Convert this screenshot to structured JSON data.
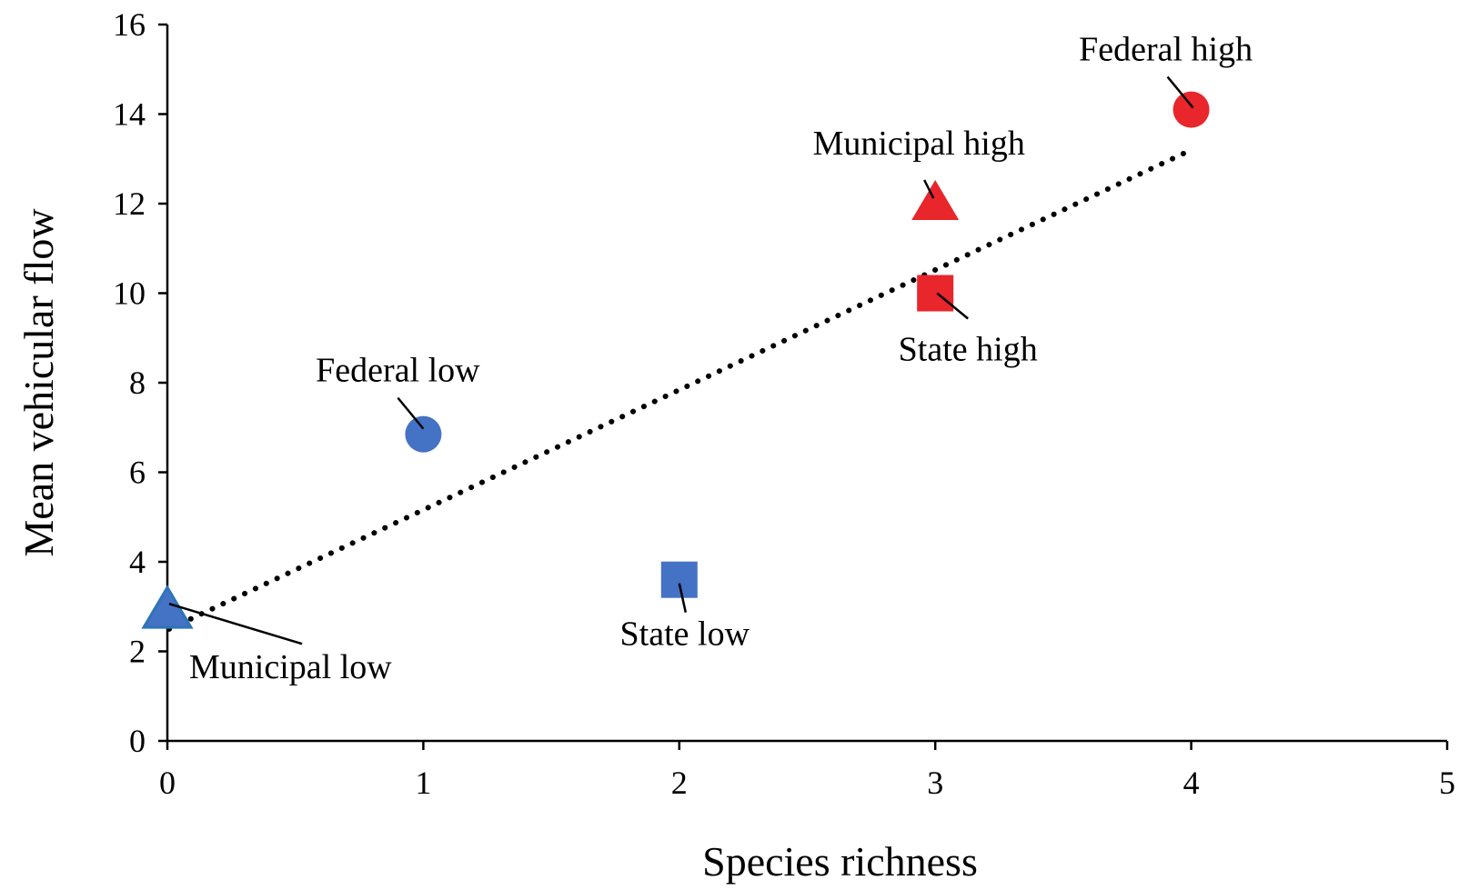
{
  "chart_data": {
    "type": "scatter",
    "title": "",
    "xlabel": "Species richness",
    "ylabel": "Mean vehicular flow",
    "xlim": [
      0,
      5
    ],
    "ylim": [
      0,
      16
    ],
    "xticks": [
      0,
      1,
      2,
      3,
      4,
      5
    ],
    "yticks": [
      0,
      2,
      4,
      6,
      8,
      10,
      12,
      14,
      16
    ],
    "grid": false,
    "legend": "none",
    "points": [
      {
        "label": "Municipal low",
        "x": 0,
        "y": 2.9,
        "marker": "triangle",
        "color": "#4472C4"
      },
      {
        "label": "Federal low",
        "x": 1,
        "y": 6.85,
        "marker": "circle",
        "color": "#4472C4"
      },
      {
        "label": "State low",
        "x": 2,
        "y": 3.6,
        "marker": "square",
        "color": "#4472C4"
      },
      {
        "label": "Municipal high",
        "x": 3,
        "y": 12.0,
        "marker": "triangle",
        "color": "#E8262B"
      },
      {
        "label": "State high",
        "x": 3,
        "y": 10.0,
        "marker": "square",
        "color": "#E8262B"
      },
      {
        "label": "Federal high",
        "x": 4,
        "y": 14.1,
        "marker": "circle",
        "color": "#E8262B"
      }
    ],
    "trendline": {
      "style": "dotted",
      "x": [
        0,
        4
      ],
      "y": [
        2.5,
        13.2
      ]
    }
  }
}
